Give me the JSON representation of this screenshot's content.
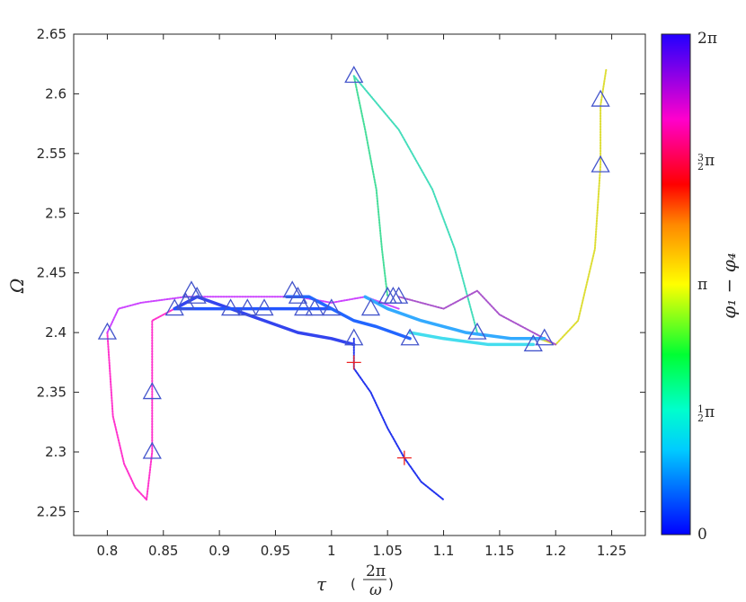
{
  "chart_data": {
    "type": "line",
    "xlabel": "τ (2π/ω)",
    "ylabel": "Ω",
    "xlim": [
      0.77,
      1.28
    ],
    "ylim": [
      2.23,
      2.65
    ],
    "xticks": [
      "0.8",
      "0.85",
      "0.9",
      "0.95",
      "1",
      "1.05",
      "1.1",
      "1.15",
      "1.2",
      "1.25"
    ],
    "yticks": [
      "2.25",
      "2.3",
      "2.35",
      "2.4",
      "2.45",
      "2.5",
      "2.55",
      "2.6",
      "2.65"
    ],
    "grid": false,
    "colorbar": {
      "label": "φ1 − φ4",
      "ticks": [
        "0",
        "½π",
        "π",
        "3/2π",
        "2π"
      ],
      "colormap": "hsv reversed (blue → cyan → green → yellow → red → magenta → blue)"
    },
    "series": [
      {
        "color": "#ff33cc",
        "style": "dotted",
        "points": [
          [
            0.8,
            2.4
          ],
          [
            0.805,
            2.33
          ],
          [
            0.815,
            2.29
          ],
          [
            0.825,
            2.27
          ],
          [
            0.835,
            2.26
          ],
          [
            0.84,
            2.3
          ],
          [
            0.84,
            2.35
          ],
          [
            0.84,
            2.41
          ],
          [
            0.85,
            2.415
          ],
          [
            0.86,
            2.42
          ]
        ]
      },
      {
        "color": "#cc44ff",
        "style": "dotted",
        "points": [
          [
            0.8,
            2.4
          ],
          [
            0.81,
            2.42
          ],
          [
            0.83,
            2.425
          ],
          [
            0.87,
            2.43
          ],
          [
            0.92,
            2.43
          ],
          [
            0.97,
            2.43
          ],
          [
            1.0,
            2.425
          ],
          [
            1.03,
            2.43
          ],
          [
            1.06,
            2.42
          ]
        ]
      },
      {
        "color": "#2233ee",
        "style": "dotted",
        "points": [
          [
            1.02,
            2.395
          ],
          [
            1.02,
            2.37
          ],
          [
            1.035,
            2.35
          ],
          [
            1.05,
            2.32
          ],
          [
            1.065,
            2.295
          ],
          [
            1.08,
            2.275
          ],
          [
            1.1,
            2.26
          ]
        ]
      },
      {
        "color": "#44dd99",
        "style": "dotted",
        "points": [
          [
            1.02,
            2.615
          ],
          [
            1.03,
            2.57
          ],
          [
            1.04,
            2.52
          ],
          [
            1.045,
            2.47
          ],
          [
            1.05,
            2.43
          ]
        ]
      },
      {
        "color": "#44ddbb",
        "style": "dotted",
        "points": [
          [
            1.02,
            2.615
          ],
          [
            1.06,
            2.57
          ],
          [
            1.09,
            2.52
          ],
          [
            1.11,
            2.47
          ],
          [
            1.13,
            2.4
          ]
        ]
      },
      {
        "color": "#dddd33",
        "style": "dotted",
        "points": [
          [
            1.245,
            2.62
          ],
          [
            1.24,
            2.59
          ],
          [
            1.24,
            2.54
          ],
          [
            1.235,
            2.47
          ],
          [
            1.22,
            2.41
          ],
          [
            1.2,
            2.39
          ],
          [
            1.185,
            2.395
          ]
        ]
      },
      {
        "color": "#aa55cc",
        "style": "dotted",
        "points": [
          [
            1.06,
            2.43
          ],
          [
            1.1,
            2.42
          ],
          [
            1.13,
            2.435
          ],
          [
            1.15,
            2.415
          ],
          [
            1.18,
            2.4
          ],
          [
            1.2,
            2.39
          ]
        ]
      },
      {
        "color": "#3344ee",
        "style": "solid",
        "points": [
          [
            0.86,
            2.42
          ],
          [
            0.88,
            2.43
          ],
          [
            0.91,
            2.42
          ],
          [
            0.94,
            2.41
          ],
          [
            0.97,
            2.4
          ],
          [
            1.0,
            2.395
          ],
          [
            1.02,
            2.39
          ]
        ]
      },
      {
        "color": "#2255ff",
        "style": "solid",
        "points": [
          [
            0.86,
            2.42
          ],
          [
            0.9,
            2.42
          ],
          [
            0.94,
            2.42
          ],
          [
            0.98,
            2.42
          ],
          [
            1.0,
            2.42
          ]
        ]
      },
      {
        "color": "#33aaff",
        "style": "solid",
        "points": [
          [
            1.03,
            2.43
          ],
          [
            1.05,
            2.42
          ],
          [
            1.08,
            2.41
          ],
          [
            1.12,
            2.4
          ],
          [
            1.16,
            2.395
          ],
          [
            1.19,
            2.395
          ]
        ]
      },
      {
        "color": "#2266ff",
        "style": "solid",
        "points": [
          [
            0.96,
            2.43
          ],
          [
            0.98,
            2.43
          ],
          [
            1.0,
            2.42
          ],
          [
            1.02,
            2.41
          ],
          [
            1.04,
            2.405
          ],
          [
            1.07,
            2.395
          ]
        ]
      },
      {
        "color": "#44ddee",
        "style": "solid",
        "points": [
          [
            1.07,
            2.4
          ],
          [
            1.1,
            2.395
          ],
          [
            1.14,
            2.39
          ],
          [
            1.18,
            2.39
          ]
        ]
      }
    ],
    "markers_triangle": [
      [
        0.8,
        2.4
      ],
      [
        0.84,
        2.35
      ],
      [
        0.84,
        2.3
      ],
      [
        0.86,
        2.42
      ],
      [
        0.87,
        2.425
      ],
      [
        0.875,
        2.435
      ],
      [
        0.88,
        2.43
      ],
      [
        0.91,
        2.42
      ],
      [
        0.925,
        2.42
      ],
      [
        0.94,
        2.42
      ],
      [
        0.965,
        2.435
      ],
      [
        0.97,
        2.43
      ],
      [
        0.975,
        2.42
      ],
      [
        0.985,
        2.42
      ],
      [
        1.0,
        2.42
      ],
      [
        1.02,
        2.615
      ],
      [
        1.02,
        2.395
      ],
      [
        1.035,
        2.42
      ],
      [
        1.05,
        2.43
      ],
      [
        1.055,
        2.43
      ],
      [
        1.06,
        2.43
      ],
      [
        1.07,
        2.395
      ],
      [
        1.13,
        2.4
      ],
      [
        1.18,
        2.39
      ],
      [
        1.19,
        2.395
      ],
      [
        1.24,
        2.595
      ],
      [
        1.24,
        2.54
      ]
    ],
    "markers_plus": [
      [
        1.02,
        2.375
      ],
      [
        1.065,
        2.295
      ]
    ]
  }
}
